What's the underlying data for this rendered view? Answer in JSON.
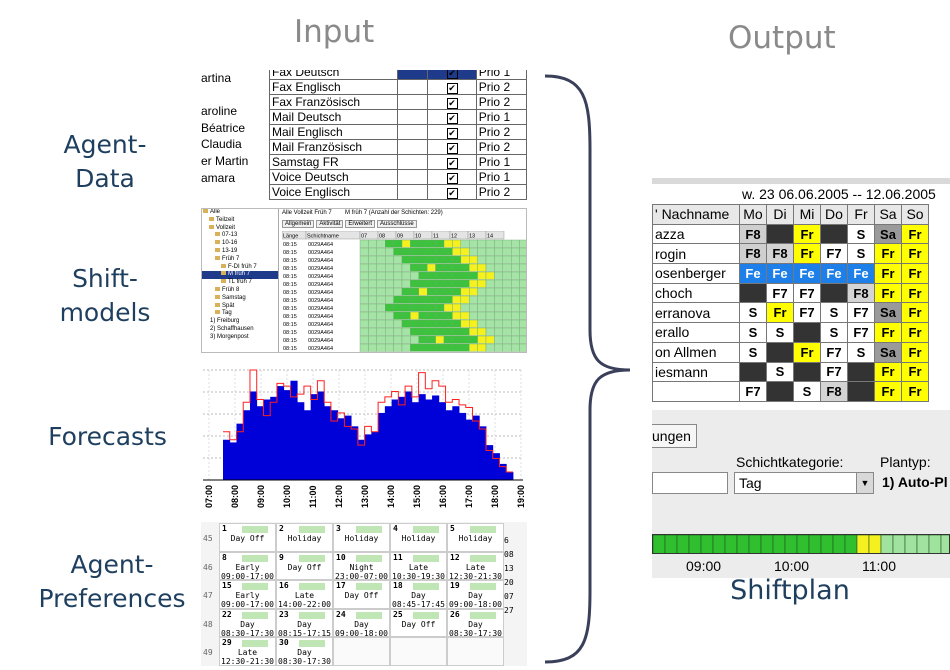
{
  "headers": {
    "input": "Input",
    "output": "Output"
  },
  "labels": {
    "agent_data": [
      "Agent-",
      "Data"
    ],
    "shift_models": [
      "Shift-",
      "models"
    ],
    "forecasts": "Forecasts",
    "agent_preferences": [
      "Agent-",
      "Preferences"
    ],
    "shiftplan": "Shiftplan"
  },
  "agent_data": {
    "names": [
      "artina",
      "",
      "aroline",
      "Béatrice",
      "Claudia",
      "er Martin",
      "amara"
    ],
    "rows": [
      {
        "skill": "Fax Deutsch",
        "prio": "Prio 1"
      },
      {
        "skill": "Fax Englisch",
        "prio": "Prio 2"
      },
      {
        "skill": "Fax Französisch",
        "prio": "Prio 2"
      },
      {
        "skill": "Mail Deutsch",
        "prio": "Prio 1"
      },
      {
        "skill": "Mail Englisch",
        "prio": "Prio 2"
      },
      {
        "skill": "Mail Französisch",
        "prio": "Prio 2"
      },
      {
        "skill": "Samstag FR",
        "prio": "Prio 1"
      },
      {
        "skill": "Voice Deutsch",
        "prio": "Prio 1"
      },
      {
        "skill": "Voice Englisch",
        "prio": "Prio 2"
      }
    ]
  },
  "shift_models": {
    "tree": [
      "Alle",
      "Teilzeit",
      "Vollzeit",
      "07-13",
      "10-16",
      "13-19",
      "Früh 7",
      "F-DI früh 7",
      "M früh 7",
      "TL früh 7",
      "Früh 8",
      "Samstag",
      "Spät",
      "Tag",
      "1) Freiburg",
      "2) Schaffhausen",
      "3) Morgenpost"
    ],
    "title": "Alle Vollzeit Früh 7",
    "title2": "M früh 7 (Anzahl der Schichten: 229)",
    "tabs": [
      "Allgemein",
      "Aktivität",
      "Erweitert",
      "Ausschlüsse"
    ],
    "cols": [
      "Länge",
      "Schichtname",
      "07",
      "08",
      "09",
      "10",
      "11",
      "12",
      "13",
      "14"
    ],
    "len": "08:15",
    "code": "0029A464"
  },
  "forecast": {
    "ticks": [
      "07:00",
      "08:00",
      "09:00",
      "10:00",
      "11:00",
      "12:00",
      "13:00",
      "14:00",
      "15:00",
      "16:00",
      "17:00",
      "18:00",
      "19:00"
    ],
    "values": [
      30,
      28,
      42,
      52,
      66,
      55,
      60,
      62,
      70,
      67,
      74,
      58,
      52,
      64,
      66,
      55,
      52,
      46,
      48,
      40,
      30,
      34,
      36,
      50,
      55,
      60,
      62,
      66,
      58,
      64,
      60,
      63,
      58,
      52,
      55,
      50,
      45,
      48,
      40,
      26,
      20,
      12,
      6
    ],
    "line": [
      36,
      30,
      36,
      58,
      82,
      60,
      48,
      58,
      72,
      70,
      62,
      64,
      70,
      60,
      74,
      58,
      44,
      50,
      40,
      38,
      26,
      40,
      36,
      58,
      62,
      66,
      56,
      70,
      62,
      80,
      68,
      74,
      70,
      58,
      60,
      56,
      54,
      44,
      38,
      22,
      16,
      10,
      6
    ]
  },
  "preferences": {
    "weeks": [
      "45",
      "46",
      "47",
      "48",
      "49"
    ],
    "cells": [
      [
        {
          "d": "1",
          "t": "Day Off",
          "h": ""
        },
        {
          "d": "2",
          "t": "Holiday",
          "h": ""
        },
        {
          "d": "3",
          "t": "Holiday",
          "h": ""
        },
        {
          "d": "4",
          "t": "Holiday",
          "h": ""
        },
        {
          "d": "5",
          "t": "Holiday",
          "h": ""
        }
      ],
      [
        {
          "d": "8",
          "t": "Early",
          "h": "09:00-17:00"
        },
        {
          "d": "9",
          "t": "Day Off",
          "h": ""
        },
        {
          "d": "10",
          "t": "Night",
          "h": "23:00-07:00"
        },
        {
          "d": "11",
          "t": "Late",
          "h": "10:30-19:30"
        },
        {
          "d": "12",
          "t": "Late",
          "h": "12:30-21:30"
        }
      ],
      [
        {
          "d": "15",
          "t": "Early",
          "h": "09:00-17:00"
        },
        {
          "d": "16",
          "t": "Late",
          "h": "14:00-22:00"
        },
        {
          "d": "17",
          "t": "Day Off",
          "h": ""
        },
        {
          "d": "18",
          "t": "Day",
          "h": "08:45-17:45"
        },
        {
          "d": "19",
          "t": "Day",
          "h": "09:00-18:00"
        }
      ],
      [
        {
          "d": "22",
          "t": "Day",
          "h": "08:30-17:30"
        },
        {
          "d": "23",
          "t": "Day",
          "h": "08:15-17:15"
        },
        {
          "d": "24",
          "t": "Day",
          "h": "09:00-18:00"
        },
        {
          "d": "25",
          "t": "Day Off",
          "h": ""
        },
        {
          "d": "26",
          "t": "Day",
          "h": "08:30-17:30"
        }
      ],
      [
        {
          "d": "29",
          "t": "Late",
          "h": "12:30-21:30"
        },
        {
          "d": "30",
          "t": "Day",
          "h": "08:30-17:30"
        },
        {
          "d": "",
          "t": "",
          "h": ""
        },
        {
          "d": "",
          "t": "",
          "h": ""
        },
        {
          "d": "",
          "t": "",
          "h": ""
        }
      ]
    ],
    "side": [
      "6",
      "08",
      "13",
      "20",
      "07",
      "27",
      "",
      "",
      "",
      ""
    ]
  },
  "shiftplan": {
    "week": "w. 23  06.06.2005 -- 12.06.2005",
    "name_header": "Nachname",
    "days": [
      "Mo",
      "Di",
      "Mi",
      "Do",
      "Fr",
      "Sa",
      "So"
    ],
    "rows": [
      {
        "name": "azza",
        "cells": [
          "F8",
          "T",
          "Fr",
          "T",
          "S",
          "Sa",
          "Fr"
        ]
      },
      {
        "name": "rogin",
        "cells": [
          "F8",
          "F8",
          "Fr",
          "F7",
          "S",
          "Fr",
          "Fr"
        ]
      },
      {
        "name": "osenberger",
        "cells": [
          "Fe",
          "Fe",
          "Fe",
          "Fe",
          "Fe",
          "Fr",
          "Fr"
        ]
      },
      {
        "name": "choch",
        "cells": [
          "T",
          "F7",
          "F7",
          "T",
          "F8",
          "Fr",
          "Fr"
        ]
      },
      {
        "name": "erranova",
        "cells": [
          "S",
          "Fr",
          "F7",
          "S",
          "F7",
          "Sa",
          "Fr"
        ]
      },
      {
        "name": "erallo",
        "cells": [
          "S",
          "S",
          "T",
          "S",
          "F7",
          "Fr",
          "Fr"
        ]
      },
      {
        "name": "on Allmen",
        "cells": [
          "S",
          "T",
          "Fr",
          "F7",
          "S",
          "Sa",
          "Fr"
        ]
      },
      {
        "name": "iesmann",
        "cells": [
          "T",
          "S",
          "T",
          "F7",
          "T",
          "Fr",
          "Fr"
        ]
      },
      {
        "name": "",
        "cells": [
          "F7",
          "T",
          "S",
          "F8",
          "T",
          "Fr",
          "Fr"
        ]
      }
    ],
    "tab": "ungen",
    "schichtkategorie_label": "Schichtkategorie:",
    "schichtkategorie_value": "Tag",
    "plantyp_label": "Plantyp:",
    "plantyp_value": "1) Auto-Pl",
    "timeline": [
      "09:00",
      "10:00",
      "11:00"
    ]
  },
  "colors": {
    "forecast_bar": "#0000d8",
    "forecast_line": "#ff2020",
    "grid_green": "#3cc23c",
    "grid_light": "#a6e3a6",
    "grid_yellow": "#f5f020",
    "cell_yellow": "#ffff00",
    "cell_blue": "#1e7fe8",
    "cell_dark": "#333333",
    "cell_gray": "#9a9a9a",
    "brace": "#3a3f5a"
  }
}
